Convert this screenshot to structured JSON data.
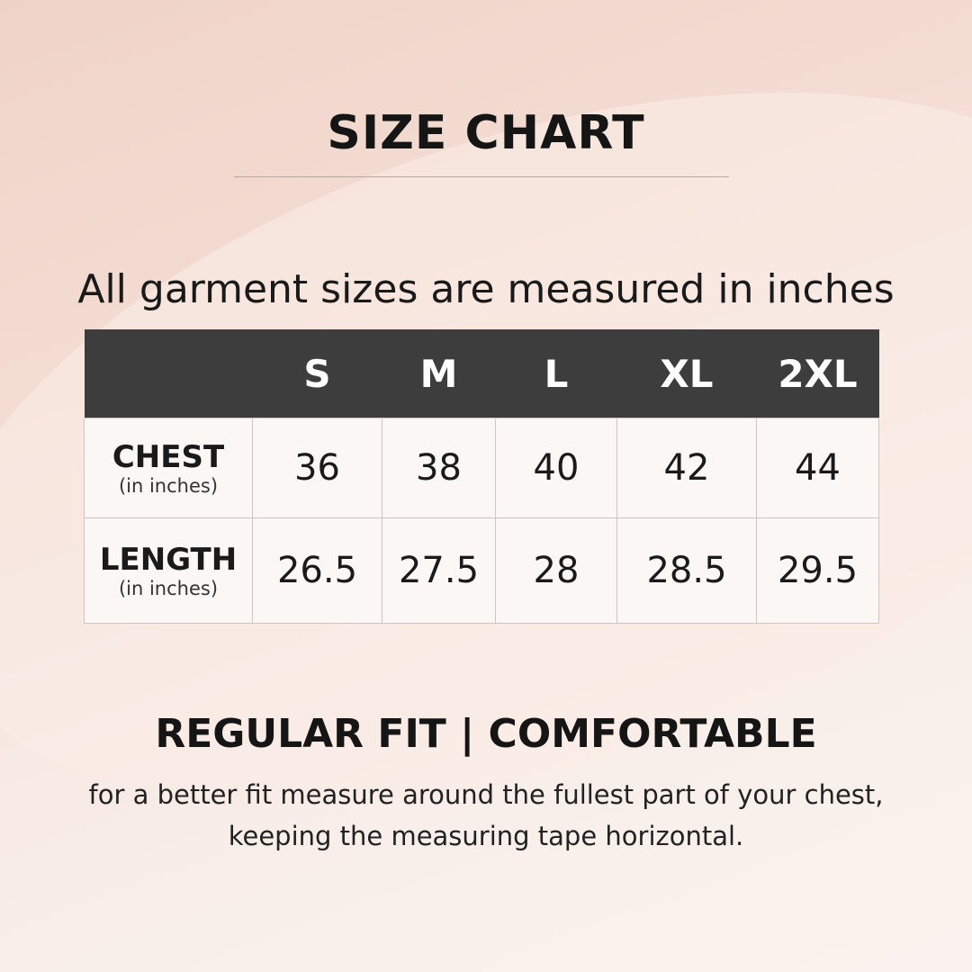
{
  "title": "SIZE CHART",
  "subtitle": "All garment sizes are measured in inches",
  "table": {
    "headers": [
      "",
      "S",
      "M",
      "L",
      "XL",
      "2XL"
    ],
    "rows": [
      {
        "label": "CHEST",
        "unit": "(in inches)",
        "values": [
          "36",
          "38",
          "40",
          "42",
          "44"
        ]
      },
      {
        "label": "LENGTH",
        "unit": "(in inches)",
        "values": [
          "26.5",
          "27.5",
          "28",
          "28.5",
          "29.5"
        ]
      }
    ]
  },
  "fit": "REGULAR FIT | COMFORTABLE",
  "note_line1": "for a better fit measure around the fullest part of your chest,",
  "note_line2": "keeping the measuring tape horizontal."
}
